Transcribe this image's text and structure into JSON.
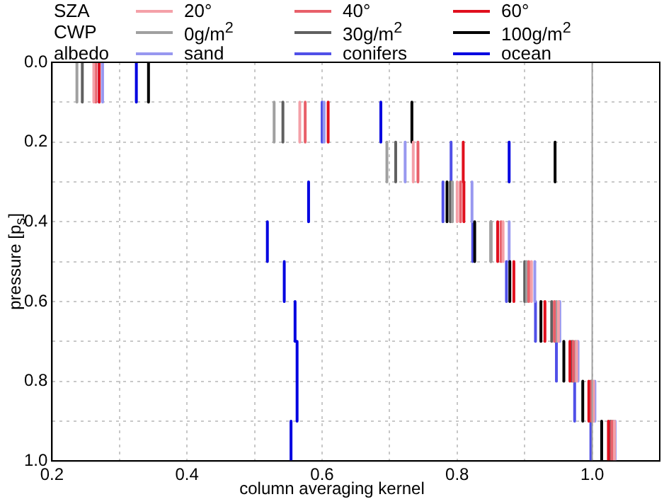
{
  "chart_data": {
    "type": "line",
    "xlabel": "column averaging kernel",
    "ylabel": "pressure [p$_{s}$]",
    "annotations": [
      "SZA",
      "CWP",
      "albedo"
    ],
    "series": [
      {
        "name": "20°",
        "color": "#f4a0a8",
        "x": [
          0.262,
          0.262,
          null,
          0.567,
          0.567,
          null,
          0.735,
          0.735,
          null,
          0.8,
          0.8,
          null,
          0.868,
          0.868,
          null,
          0.91,
          0.91,
          null,
          0.95,
          0.95,
          null,
          0.977,
          0.977,
          null,
          1.002,
          1.002,
          null,
          1.033,
          1.033
        ],
        "values": [
          0,
          0.1,
          null,
          0.1,
          0.2,
          null,
          0.2,
          0.3,
          null,
          0.3,
          0.4,
          null,
          0.4,
          0.5,
          null,
          0.5,
          0.6,
          null,
          0.6,
          0.7,
          null,
          0.7,
          0.8,
          null,
          0.8,
          0.9,
          null,
          0.9,
          1.0
        ]
      },
      {
        "name": "40°",
        "color": "#e8606a",
        "x": [
          0.265,
          0.265,
          null,
          0.575,
          0.575,
          null,
          0.742,
          0.742,
          null,
          0.805,
          0.805,
          null,
          0.865,
          0.865,
          null,
          0.906,
          0.906,
          null,
          0.944,
          0.944,
          null,
          0.972,
          0.972,
          null,
          0.999,
          0.999,
          null,
          1.029,
          1.029
        ],
        "values": [
          0,
          0.1,
          null,
          0.1,
          0.2,
          null,
          0.2,
          0.3,
          null,
          0.3,
          0.4,
          null,
          0.4,
          0.5,
          null,
          0.5,
          0.6,
          null,
          0.6,
          0.7,
          null,
          0.7,
          0.8,
          null,
          0.8,
          0.9,
          null,
          0.9,
          1.0
        ]
      },
      {
        "name": "60°",
        "color": "#e0101e",
        "x": [
          0.27,
          0.27,
          null,
          0.609,
          0.609,
          null,
          0.809,
          0.809,
          null,
          0.81,
          0.81,
          null,
          0.86,
          0.86,
          null,
          0.884,
          0.884,
          null,
          0.93,
          0.93,
          null,
          0.967,
          0.967,
          null,
          0.995,
          0.995,
          null,
          1.024,
          1.024
        ],
        "values": [
          0,
          0.1,
          null,
          0.1,
          0.2,
          null,
          0.2,
          0.3,
          null,
          0.3,
          0.4,
          null,
          0.4,
          0.5,
          null,
          0.5,
          0.6,
          null,
          0.6,
          0.7,
          null,
          0.7,
          0.8,
          null,
          0.8,
          0.9,
          null,
          0.9,
          1.0
        ]
      },
      {
        "name": "0g/m$^{2}$",
        "color": "#a0a0a0",
        "x": [
          0.237,
          0.237,
          null,
          0.529,
          0.529,
          null,
          0.696,
          0.696,
          null,
          0.793,
          0.793,
          null,
          0.85,
          0.85,
          null,
          0.903,
          0.903,
          null,
          0.947,
          0.947,
          null,
          0.975,
          0.975,
          null,
          1.0,
          1.0,
          null,
          1.031,
          1.031
        ],
        "values": [
          0,
          0.1,
          null,
          0.1,
          0.2,
          null,
          0.2,
          0.3,
          null,
          0.3,
          0.4,
          null,
          0.4,
          0.5,
          null,
          0.5,
          0.6,
          null,
          0.6,
          0.7,
          null,
          0.7,
          0.8,
          null,
          0.8,
          0.9,
          null,
          0.9,
          1.0
        ]
      },
      {
        "name": "30g/m$^{2}$",
        "color": "#606060",
        "x": [
          0.245,
          0.245,
          null,
          0.542,
          0.542,
          null,
          0.709,
          0.709,
          null,
          0.79,
          0.79,
          null,
          0.85,
          0.85,
          null,
          0.9,
          0.9,
          null,
          0.94,
          0.94,
          null,
          0.97,
          0.97,
          null,
          0.998,
          0.998,
          null,
          1.027,
          1.027
        ],
        "values": [
          0,
          0.1,
          null,
          0.1,
          0.2,
          null,
          0.2,
          0.3,
          null,
          0.3,
          0.4,
          null,
          0.4,
          0.5,
          null,
          0.5,
          0.6,
          null,
          0.6,
          0.7,
          null,
          0.7,
          0.8,
          null,
          0.8,
          0.9,
          null,
          0.9,
          1.0
        ]
      },
      {
        "name": "100g/m$^{2}$",
        "color": "#000000",
        "x": [
          0.343,
          0.343,
          null,
          0.733,
          0.733,
          null,
          0.945,
          0.945,
          null,
          0.785,
          0.785,
          null,
          0.826,
          0.826,
          null,
          0.878,
          0.878,
          null,
          0.924,
          0.924,
          null,
          0.958,
          0.958,
          null,
          0.986,
          0.986,
          null,
          1.014,
          1.014
        ],
        "values": [
          0,
          0.1,
          null,
          0.1,
          0.2,
          null,
          0.2,
          0.3,
          null,
          0.3,
          0.4,
          null,
          0.4,
          0.5,
          null,
          0.5,
          0.6,
          null,
          0.6,
          0.7,
          null,
          0.7,
          0.8,
          null,
          0.8,
          0.9,
          null,
          0.9,
          1.0
        ]
      },
      {
        "name": "sand",
        "color": "#9898f0",
        "x": [
          0.275,
          0.275,
          null,
          0.603,
          0.603,
          null,
          0.723,
          0.723,
          null,
          0.822,
          0.822,
          null,
          0.877,
          0.877,
          null,
          0.915,
          0.915,
          null,
          0.952,
          0.952,
          null,
          0.979,
          0.979,
          null,
          1.004,
          1.004,
          null,
          1.034,
          1.034
        ],
        "values": [
          0,
          0.1,
          null,
          0.1,
          0.2,
          null,
          0.2,
          0.3,
          null,
          0.3,
          0.4,
          null,
          0.4,
          0.5,
          null,
          0.5,
          0.6,
          null,
          0.6,
          0.7,
          null,
          0.7,
          0.8,
          null,
          0.8,
          0.9,
          null,
          0.9,
          1.0
        ]
      },
      {
        "name": "conifers",
        "color": "#5050e8",
        "x": [
          0.27,
          0.27,
          null,
          0.6,
          0.6,
          null,
          0.791,
          0.791,
          null,
          0.779,
          0.779,
          null,
          0.823,
          0.823,
          null,
          0.873,
          0.873,
          null,
          0.916,
          0.916,
          null,
          0.947,
          0.947,
          null,
          0.974,
          0.974,
          null,
          0.998,
          0.998
        ],
        "values": [
          0,
          0.1,
          null,
          0.1,
          0.2,
          null,
          0.2,
          0.3,
          null,
          0.3,
          0.4,
          null,
          0.4,
          0.5,
          null,
          0.5,
          0.6,
          null,
          0.6,
          0.7,
          null,
          0.7,
          0.8,
          null,
          0.8,
          0.9,
          null,
          0.9,
          1.0
        ]
      },
      {
        "name": "ocean",
        "color": "#0000e0",
        "x": [
          0.325,
          0.325,
          null,
          0.687,
          0.687,
          null,
          0.877,
          0.877,
          null,
          0.58,
          0.58,
          null,
          0.519,
          0.519,
          null,
          0.544,
          0.544,
          null,
          0.56,
          0.56,
          null,
          0.563,
          0.563,
          null,
          0.563,
          0.563,
          null,
          0.554,
          0.554
        ],
        "values": [
          0,
          0.1,
          null,
          0.1,
          0.2,
          null,
          0.2,
          0.3,
          null,
          0.3,
          0.4,
          null,
          0.4,
          0.5,
          null,
          0.5,
          0.6,
          null,
          0.6,
          0.7,
          null,
          0.7,
          0.8,
          null,
          0.8,
          0.9,
          null,
          0.9,
          1.0
        ]
      }
    ],
    "xlim": [
      0.2,
      1.1
    ],
    "xticks": [
      0.2,
      {
        "value": 0.3,
        "label": null
      },
      0.4,
      {
        "value": 0.5,
        "label": null
      },
      0.6,
      {
        "value": 0.7,
        "label": null
      },
      0.8,
      {
        "value": 0.9,
        "label": null
      },
      {
        "value": 1.0,
        "label": "1.0"
      }
    ],
    "ylim": [
      1.0,
      0.0
    ],
    "yticks": [
      {
        "value": 0.0,
        "label": "0.0"
      },
      {
        "value": 0.1,
        "label": null
      },
      0.2,
      {
        "value": 0.3,
        "label": null
      },
      0.4,
      {
        "value": 0.5,
        "label": null
      },
      0.6,
      {
        "value": 0.7,
        "label": null
      },
      0.8,
      {
        "value": 0.9,
        "label": null
      },
      {
        "value": 1.0,
        "label": "1.0"
      }
    ],
    "ref_lines": [
      {
        "axis": "x",
        "value": 1.0,
        "color": "#a0a0a0"
      }
    ],
    "grid": true,
    "legend": "top"
  }
}
